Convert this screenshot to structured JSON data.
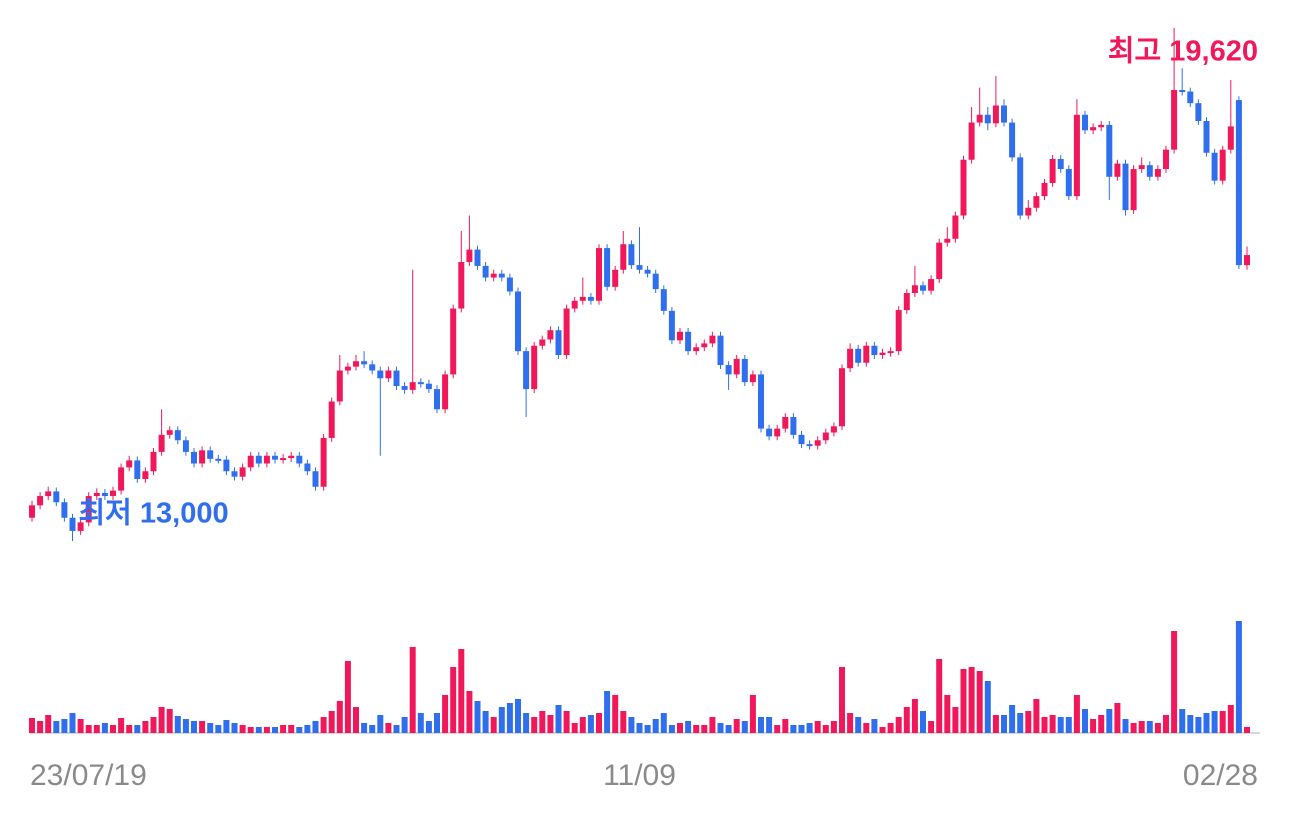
{
  "chart_data": {
    "type": "candlestick",
    "categories": [
      "23/07/19",
      null,
      null,
      null,
      null,
      null,
      null,
      null,
      null,
      null,
      null,
      null,
      null,
      null,
      null,
      null,
      null,
      null,
      null,
      null,
      null,
      null,
      null,
      null,
      null,
      null,
      null,
      null,
      null,
      null,
      null,
      null,
      null,
      null,
      null,
      null,
      null,
      null,
      null,
      null,
      null,
      null,
      null,
      null,
      null,
      null,
      null,
      null,
      null,
      null,
      null,
      null,
      null,
      null,
      null,
      null,
      null,
      null,
      null,
      null,
      null,
      null,
      null,
      null,
      null,
      null,
      null,
      null,
      null,
      null,
      null,
      null,
      null,
      null,
      null,
      "11/09",
      null,
      null,
      null,
      null,
      null,
      null,
      null,
      null,
      null,
      null,
      null,
      null,
      null,
      null,
      null,
      null,
      null,
      null,
      null,
      null,
      null,
      null,
      null,
      null,
      null,
      null,
      null,
      null,
      null,
      null,
      null,
      null,
      null,
      null,
      null,
      null,
      null,
      null,
      null,
      null,
      null,
      null,
      null,
      null,
      null,
      null,
      null,
      null,
      null,
      null,
      null,
      null,
      null,
      null,
      null,
      null,
      null,
      null,
      null,
      null,
      null,
      null,
      null,
      null,
      null,
      null,
      null,
      null,
      null,
      null,
      null,
      null,
      null,
      null,
      "02/28"
    ],
    "open": [
      13300,
      13460,
      13580,
      13640,
      13500,
      13300,
      13130,
      13240,
      13580,
      13620,
      13580,
      13650,
      13950,
      14040,
      13800,
      13900,
      14150,
      14370,
      14430,
      14300,
      14150,
      14000,
      14170,
      14060,
      14050,
      13900,
      13830,
      13950,
      14100,
      14000,
      14100,
      14050,
      14070,
      14100,
      14000,
      13900,
      13700,
      14330,
      14800,
      15200,
      15250,
      15320,
      15280,
      15200,
      15100,
      15200,
      15000,
      14950,
      15050,
      15030,
      14960,
      14700,
      15150,
      16000,
      16600,
      16760,
      16550,
      16400,
      16450,
      16400,
      16220,
      15450,
      14960,
      15520,
      15600,
      15720,
      15400,
      16000,
      16100,
      16150,
      16100,
      16780,
      16280,
      16500,
      16830,
      16560,
      16500,
      16450,
      16250,
      15970,
      15590,
      15700,
      15450,
      15500,
      15550,
      15650,
      15270,
      15150,
      15350,
      15050,
      15150,
      14450,
      14350,
      14450,
      14600,
      14370,
      14250,
      14230,
      14300,
      14400,
      14480,
      15230,
      15480,
      15300,
      15520,
      15400,
      15430,
      15450,
      15980,
      16200,
      16300,
      16230,
      16380,
      16850,
      16900,
      17200,
      17920,
      18400,
      18500,
      18390,
      18620,
      18400,
      17950,
      17200,
      17300,
      17450,
      17620,
      17930,
      17800,
      17450,
      18500,
      18300,
      18340,
      18370,
      17700,
      17870,
      17270,
      17800,
      17850,
      17700,
      17800,
      18050,
      18820,
      18800,
      18650,
      18420,
      18010,
      17650,
      18050,
      18690,
      16560
    ],
    "high": [
      13520,
      13630,
      13700,
      13690,
      13550,
      13350,
      13300,
      13630,
      13680,
      13670,
      13700,
      14000,
      14100,
      14090,
      13950,
      14200,
      14700,
      14480,
      14480,
      14350,
      14200,
      14220,
      14220,
      14110,
      14100,
      13950,
      14000,
      14150,
      14150,
      14150,
      14150,
      14120,
      14150,
      14150,
      14050,
      13950,
      14380,
      14850,
      15400,
      15300,
      15400,
      15450,
      15330,
      15250,
      15250,
      15250,
      15050,
      16500,
      15100,
      15080,
      15010,
      15200,
      16050,
      17000,
      17200,
      16810,
      16600,
      16500,
      16500,
      16450,
      16270,
      15500,
      15570,
      15650,
      15770,
      15770,
      16050,
      16150,
      16400,
      16200,
      16830,
      16830,
      16550,
      17000,
      16880,
      17050,
      16550,
      16500,
      16300,
      16020,
      15750,
      15750,
      15550,
      15600,
      15700,
      15700,
      15320,
      15400,
      15400,
      15200,
      15200,
      14500,
      14500,
      14650,
      14650,
      14420,
      14300,
      14350,
      14450,
      14530,
      15280,
      15550,
      15530,
      15570,
      15570,
      15480,
      15500,
      16030,
      16250,
      16550,
      16350,
      16430,
      16900,
      17050,
      17250,
      17970,
      18600,
      18850,
      18600,
      19000,
      18700,
      18450,
      18000,
      17400,
      17500,
      17670,
      17980,
      17980,
      17850,
      18700,
      18550,
      18390,
      18420,
      18420,
      17920,
      17920,
      17850,
      17950,
      17900,
      17850,
      18100,
      19620,
      19100,
      18850,
      18700,
      18470,
      18060,
      18100,
      18950,
      18740,
      16800
    ],
    "low": [
      13250,
      13410,
      13530,
      13450,
      13250,
      13000,
      13080,
      13190,
      13530,
      13530,
      13530,
      13600,
      13900,
      13750,
      13750,
      13850,
      14100,
      14320,
      14250,
      14100,
      13950,
      13950,
      14010,
      14000,
      13850,
      13780,
      13780,
      13900,
      13950,
      13950,
      14000,
      14000,
      14020,
      13950,
      13850,
      13650,
      13650,
      14280,
      14750,
      15150,
      15200,
      15230,
      15150,
      14100,
      15050,
      14950,
      14900,
      14900,
      14980,
      14910,
      14650,
      14650,
      15100,
      15950,
      16550,
      16500,
      16350,
      16350,
      16350,
      16170,
      15400,
      14600,
      14910,
      15470,
      15550,
      15350,
      15350,
      15950,
      16050,
      16050,
      16050,
      16230,
      16230,
      16450,
      16510,
      16450,
      16400,
      16200,
      15920,
      15540,
      15540,
      15400,
      15400,
      15450,
      15500,
      15220,
      14950,
      15100,
      15000,
      15000,
      14400,
      14300,
      14300,
      14400,
      14320,
      14200,
      14180,
      14180,
      14250,
      14350,
      14430,
      15180,
      15250,
      15250,
      15350,
      15350,
      15380,
      15400,
      15930,
      16150,
      16180,
      16180,
      16330,
      16800,
      16850,
      17150,
      17870,
      18350,
      18300,
      18340,
      18350,
      17900,
      17150,
      17150,
      17250,
      17400,
      17570,
      17750,
      17400,
      17400,
      18250,
      18250,
      18290,
      17400,
      17650,
      17200,
      17220,
      17750,
      17650,
      17650,
      17750,
      18000,
      18750,
      18600,
      18370,
      17960,
      17600,
      17600,
      18000,
      16510,
      16500
    ],
    "close": [
      13460,
      13580,
      13640,
      13500,
      13300,
      13130,
      13240,
      13580,
      13620,
      13580,
      13650,
      13950,
      14040,
      13800,
      13900,
      14150,
      14370,
      14430,
      14300,
      14150,
      14000,
      14170,
      14060,
      14050,
      13900,
      13830,
      13950,
      14100,
      14000,
      14100,
      14050,
      14070,
      14100,
      14000,
      13900,
      13700,
      14330,
      14800,
      15200,
      15250,
      15320,
      15280,
      15200,
      15100,
      15200,
      15000,
      14950,
      15050,
      15030,
      14960,
      14700,
      15150,
      16000,
      16600,
      16760,
      16550,
      16400,
      16450,
      16400,
      16220,
      15450,
      14960,
      15520,
      15600,
      15720,
      15400,
      16000,
      16100,
      16150,
      16100,
      16780,
      16280,
      16500,
      16830,
      16560,
      16500,
      16450,
      16250,
      15970,
      15590,
      15700,
      15450,
      15500,
      15550,
      15650,
      15270,
      15150,
      15350,
      15050,
      15150,
      14450,
      14350,
      14450,
      14600,
      14370,
      14250,
      14230,
      14300,
      14400,
      14480,
      15230,
      15480,
      15300,
      15520,
      15400,
      15430,
      15450,
      15980,
      16200,
      16300,
      16230,
      16380,
      16850,
      16900,
      17200,
      17920,
      18400,
      18500,
      18390,
      18620,
      18400,
      17950,
      17200,
      17300,
      17450,
      17620,
      17930,
      17800,
      17450,
      18500,
      18300,
      18340,
      18370,
      17700,
      17870,
      17270,
      17800,
      17850,
      17700,
      17800,
      18050,
      18820,
      18800,
      18650,
      18420,
      18010,
      17650,
      18050,
      18350,
      16560,
      16690
    ],
    "volume": [
      15,
      12,
      18,
      12,
      14,
      20,
      14,
      8,
      8,
      10,
      8,
      15,
      8,
      8,
      12,
      16,
      26,
      24,
      17,
      14,
      12,
      12,
      10,
      8,
      13,
      10,
      8,
      6,
      6,
      6,
      6,
      8,
      8,
      6,
      8,
      12,
      16,
      22,
      32,
      72,
      26,
      10,
      8,
      18,
      10,
      8,
      16,
      86,
      20,
      12,
      20,
      38,
      66,
      84,
      42,
      32,
      22,
      16,
      26,
      30,
      34,
      20,
      16,
      22,
      18,
      28,
      22,
      10,
      16,
      18,
      20,
      42,
      38,
      22,
      16,
      10,
      8,
      14,
      20,
      8,
      10,
      12,
      8,
      8,
      16,
      10,
      8,
      14,
      12,
      38,
      16,
      16,
      8,
      14,
      8,
      8,
      10,
      12,
      8,
      12,
      66,
      20,
      16,
      10,
      14,
      6,
      10,
      16,
      26,
      34,
      22,
      12,
      74,
      38,
      26,
      64,
      66,
      62,
      52,
      18,
      18,
      28,
      20,
      22,
      34,
      16,
      18,
      16,
      16,
      38,
      24,
      14,
      18,
      24,
      30,
      14,
      10,
      12,
      12,
      10,
      18,
      102,
      24,
      18,
      16,
      20,
      22,
      22,
      28,
      112,
      6
    ],
    "up_color": "#f0185a",
    "down_color": "#2f6fed",
    "annotations": [
      {
        "text": "최고 19,620",
        "value": 19620
      },
      {
        "text": "최저 13,000",
        "value": 13000
      }
    ]
  }
}
